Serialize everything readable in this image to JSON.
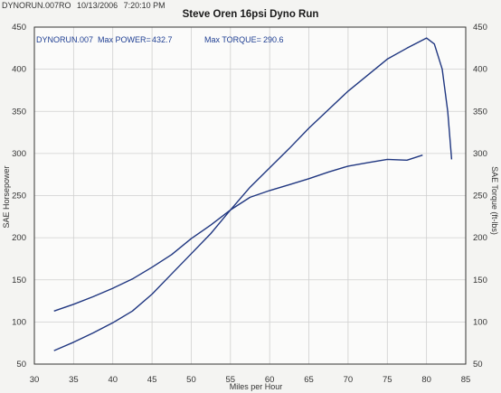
{
  "header": {
    "filename": "DYNORUN.007RO",
    "date": "10/13/2006",
    "time": "7:20:10 PM"
  },
  "chart_data": {
    "type": "line",
    "title": "Steve Oren 16psi Dyno Run",
    "xlabel": "Miles per Hour",
    "ylabel_left": "SAE Horsepower",
    "ylabel_right": "SAE Torque (ft-lbs)",
    "xlim": [
      30,
      85
    ],
    "ylim": [
      50,
      450
    ],
    "x_ticks": [
      30,
      35,
      40,
      45,
      50,
      55,
      60,
      65,
      70,
      75,
      80,
      85
    ],
    "y_ticks": [
      50,
      100,
      150,
      200,
      250,
      300,
      350,
      400,
      450
    ],
    "grid": true,
    "annotations": {
      "run": "DYNORUN.007",
      "max_power_label": "Max POWER=",
      "max_power_value": "432.7",
      "max_torque_label": "Max TORQUE=",
      "max_torque_value": "290.6"
    },
    "series": [
      {
        "color": "#1f3680",
        "x": [
          32.5,
          35,
          37.5,
          40,
          42.5,
          45,
          47.5,
          50,
          52.5,
          55,
          57.5,
          60,
          62.5,
          65,
          67.5,
          70,
          72.5,
          75,
          77.5,
          80,
          81,
          82,
          82.7,
          83.2
        ],
        "y": [
          66,
          76,
          87,
          99,
          113,
          133,
          157,
          181,
          205,
          233,
          260,
          283,
          306,
          330,
          352,
          374,
          393,
          412,
          425,
          437,
          430,
          400,
          350,
          293
        ]
      },
      {
        "color": "#1f3680",
        "x": [
          32.5,
          35,
          37.5,
          40,
          42.5,
          45,
          47.5,
          50,
          52.5,
          55,
          57.5,
          60,
          62.5,
          65,
          67.5,
          70,
          72.5,
          75,
          77.5,
          79.5
        ],
        "y": [
          113,
          121,
          130,
          140,
          151,
          165,
          180,
          199,
          215,
          233,
          248,
          256,
          263,
          270,
          278,
          285,
          289,
          293,
          292,
          298
        ]
      }
    ]
  }
}
